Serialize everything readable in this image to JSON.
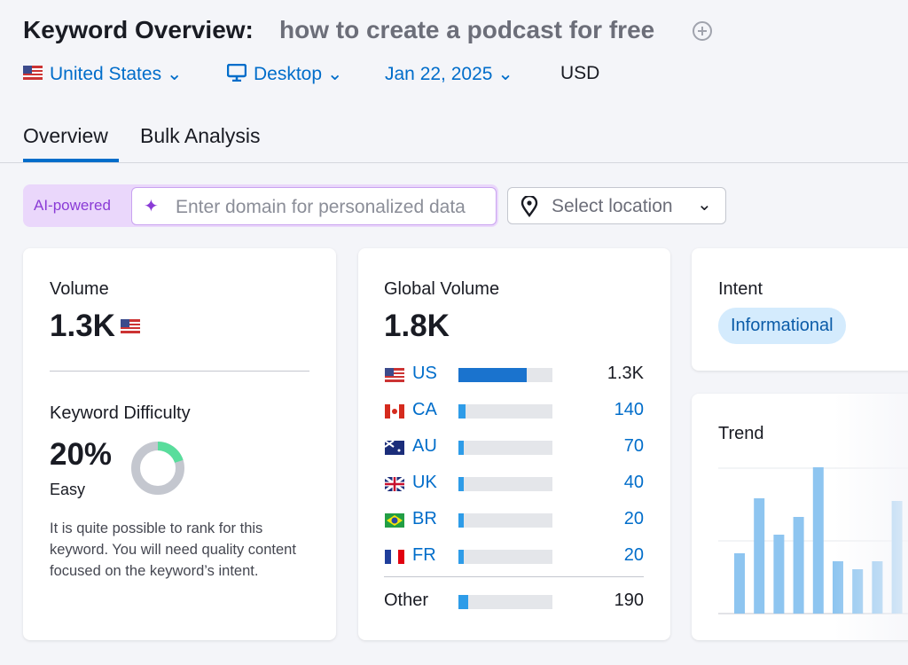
{
  "header": {
    "title": "Keyword Overview:",
    "keyword": "how to create a podcast for free",
    "country": "United States",
    "device": "Desktop",
    "date": "Jan 22, 2025",
    "currency": "USD"
  },
  "tabs": [
    "Overview",
    "Bulk Analysis"
  ],
  "toolbar": {
    "badge": "AI-powered",
    "domain_placeholder": "Enter domain for personalized data",
    "location_placeholder": "Select location"
  },
  "volume": {
    "label": "Volume",
    "value": "1.3K"
  },
  "difficulty": {
    "label": "Keyword Difficulty",
    "value": 20,
    "value_label": "20%",
    "level": "Easy",
    "description": "It is quite possible to rank for this keyword. You will need quality content focused on the keyword’s intent."
  },
  "global_volume": {
    "label": "Global Volume",
    "total": "1.8K",
    "countries": [
      {
        "code": "US",
        "value": 1300,
        "value_label": "1.3K"
      },
      {
        "code": "CA",
        "value": 140
      },
      {
        "code": "AU",
        "value": 70
      },
      {
        "code": "UK",
        "value": 40
      },
      {
        "code": "BR",
        "value": 20
      },
      {
        "code": "FR",
        "value": 20
      }
    ],
    "other": {
      "name": "Other",
      "value": 190
    }
  },
  "intent": {
    "label": "Intent",
    "value": "Informational"
  },
  "trend": {
    "label": "Trend",
    "values": [
      68,
      130,
      89,
      109,
      165,
      59,
      50,
      59,
      127
    ]
  }
}
